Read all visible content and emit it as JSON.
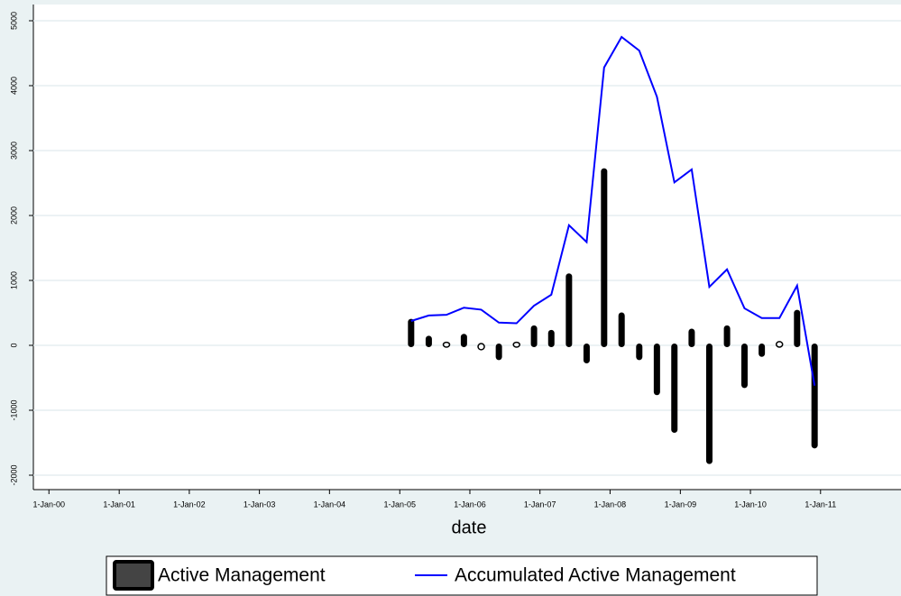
{
  "chart_data": {
    "type": "bar_line",
    "x_axis_label": "date",
    "x": [
      "2005-03-01",
      "2005-06-01",
      "2005-09-01",
      "2005-12-01",
      "2006-03-01",
      "2006-06-01",
      "2006-09-01",
      "2006-12-01",
      "2007-03-01",
      "2007-06-01",
      "2007-09-01",
      "2007-12-01",
      "2008-03-01",
      "2008-06-01",
      "2008-09-01",
      "2008-12-01",
      "2009-03-01",
      "2009-06-01",
      "2009-09-01",
      "2009-12-01",
      "2010-03-01",
      "2010-06-01",
      "2010-09-01",
      "2010-12-01"
    ],
    "series": [
      {
        "name": "Active Management",
        "type": "bar",
        "color": "#000000",
        "values": [
          380,
          120,
          20,
          150,
          -40,
          -200,
          20,
          280,
          210,
          1080,
          -250,
          2700,
          480,
          -200,
          -740,
          -1320,
          230,
          -1800,
          280,
          -630,
          -150,
          30,
          520,
          -1560
        ]
      },
      {
        "name": "Accumulated Active Management",
        "type": "line",
        "color": "#0000ff",
        "values": [
          375,
          460,
          470,
          580,
          550,
          350,
          340,
          610,
          780,
          1850,
          1590,
          4280,
          4750,
          4540,
          3830,
          2510,
          2710,
          900,
          1170,
          570,
          420,
          420,
          920,
          -620
        ]
      }
    ],
    "xlim": [
      "1999-10-12",
      "2012-02-24"
    ],
    "xticks": [
      {
        "value": "2000-01-01",
        "label": "1-Jan-00"
      },
      {
        "value": "2001-01-01",
        "label": "1-Jan-01"
      },
      {
        "value": "2002-01-01",
        "label": "1-Jan-02"
      },
      {
        "value": "2003-01-01",
        "label": "1-Jan-03"
      },
      {
        "value": "2004-01-01",
        "label": "1-Jan-04"
      },
      {
        "value": "2005-01-01",
        "label": "1-Jan-05"
      },
      {
        "value": "2006-01-01",
        "label": "1-Jan-06"
      },
      {
        "value": "2007-01-01",
        "label": "1-Jan-07"
      },
      {
        "value": "2008-01-01",
        "label": "1-Jan-08"
      },
      {
        "value": "2009-01-01",
        "label": "1-Jan-09"
      },
      {
        "value": "2010-01-01",
        "label": "1-Jan-10"
      },
      {
        "value": "2011-01-01",
        "label": "1-Jan-11"
      }
    ],
    "ylim": [
      -2222,
      5250
    ],
    "yticks": [
      -2000,
      -1000,
      0,
      1000,
      2000,
      3000,
      4000,
      5000
    ],
    "grid": true
  }
}
